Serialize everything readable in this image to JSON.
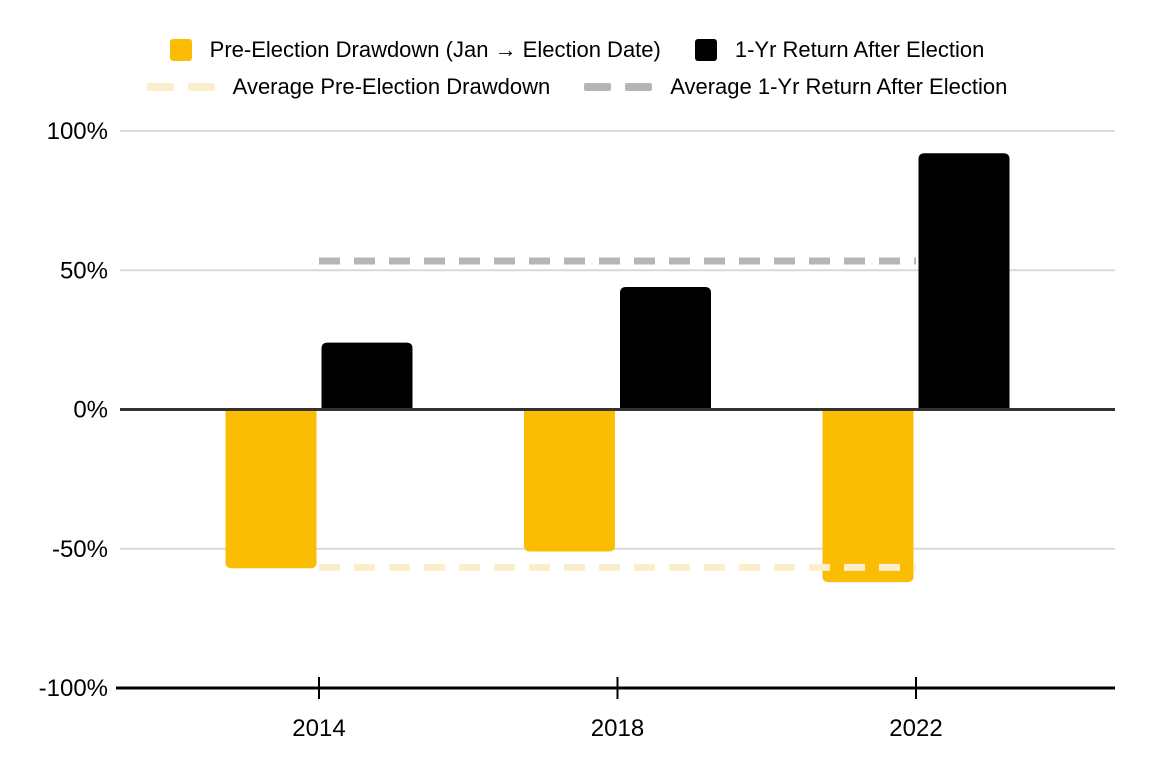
{
  "legend": {
    "row1": [
      {
        "label": "Pre-Election Drawdown (Jan → Election Date)",
        "color": "#FBBC04",
        "swatch": "square"
      },
      {
        "label": "1-Yr Return After Election",
        "color": "#000000",
        "swatch": "square"
      }
    ],
    "row2": [
      {
        "label": "Average Pre-Election Drawdown",
        "color": "#FBEECB",
        "swatch": "dashes"
      },
      {
        "label": "Average 1-Yr Return After Election",
        "color": "#B5B5B5",
        "swatch": "dashes"
      }
    ]
  },
  "chart_data": {
    "type": "bar",
    "categories": [
      "2014",
      "2018",
      "2022"
    ],
    "series": [
      {
        "name": "Pre-Election Drawdown (Jan → Election Date)",
        "color": "#FBBC04",
        "values": [
          -57,
          -51,
          -62
        ]
      },
      {
        "name": "1-Yr Return After Election",
        "color": "#000000",
        "values": [
          24,
          44,
          92
        ]
      }
    ],
    "average_lines": [
      {
        "name": "Average Pre-Election Drawdown",
        "color": "#FBEECB",
        "value": -56.7,
        "style": "dashed"
      },
      {
        "name": "Average 1-Yr Return After Election",
        "color": "#B5B5B5",
        "value": 53.3,
        "style": "dashed"
      }
    ],
    "ylim": [
      -100,
      100
    ],
    "yticks": [
      100,
      50,
      0,
      -50,
      -100
    ],
    "ytick_labels": [
      "100%",
      "50%",
      "0%",
      "-50%",
      "-100%"
    ],
    "xlabel": "",
    "ylabel": "",
    "grid": true,
    "legend_position": "top",
    "colors": {
      "gridline": "#D9D9D9",
      "zero_line": "#333333",
      "axis_line": "#000000",
      "label_text": "#000000"
    }
  }
}
